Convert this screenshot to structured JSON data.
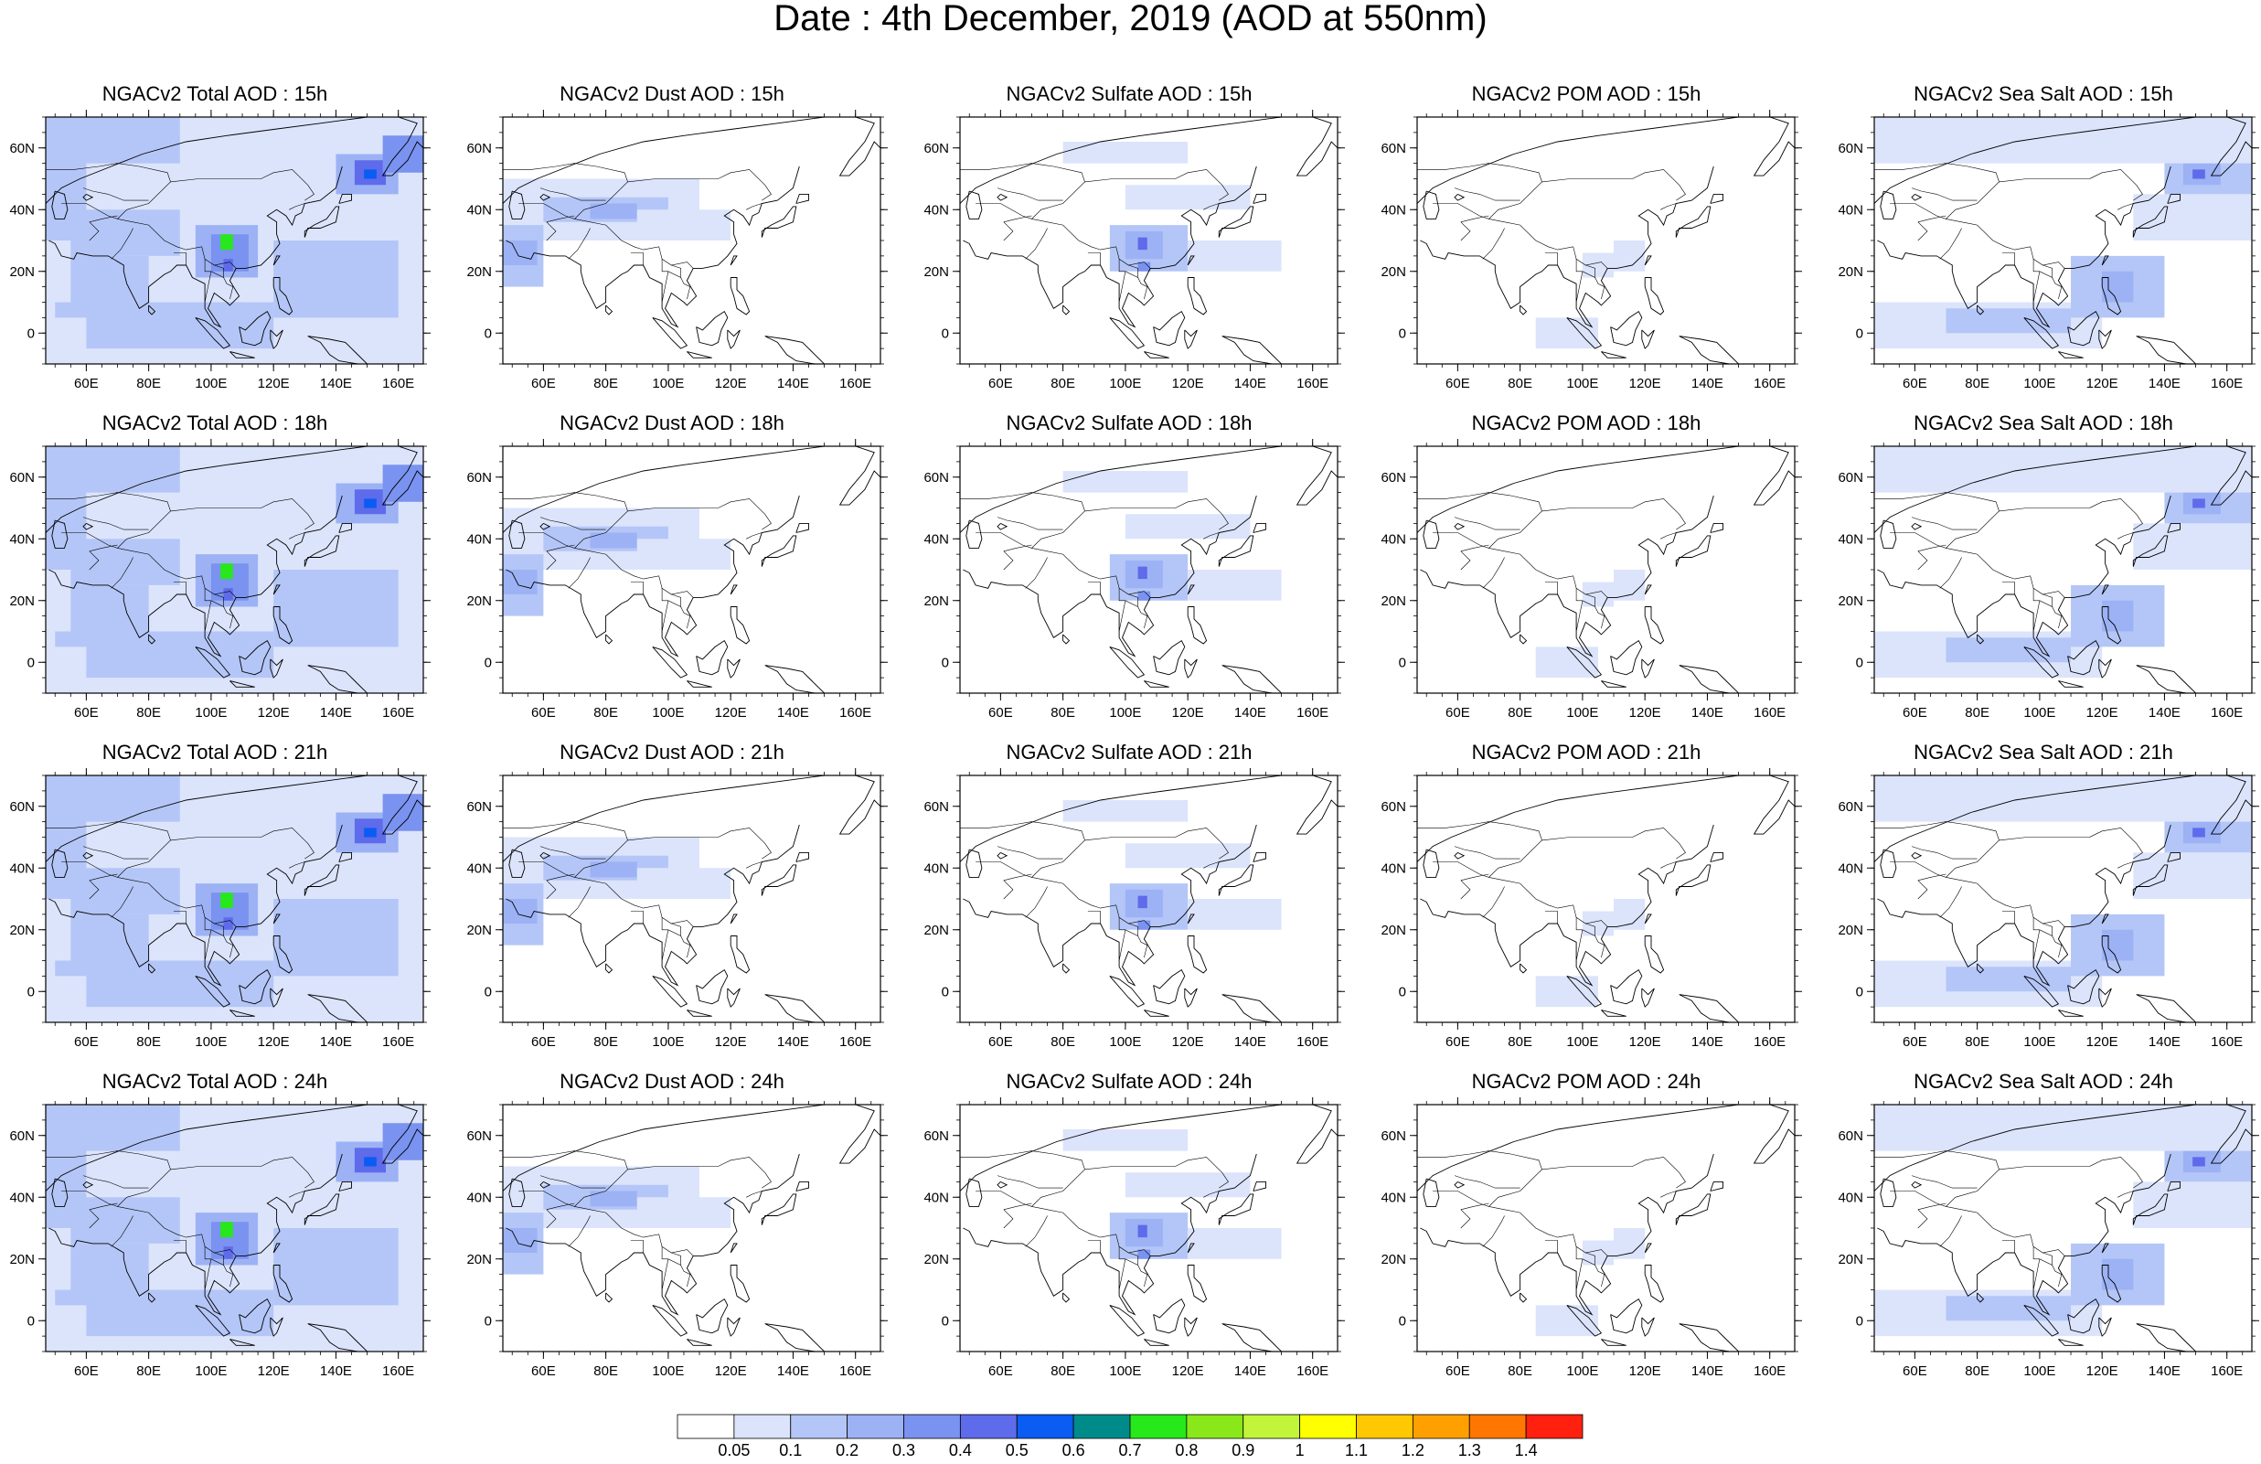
{
  "page": {
    "title": "Date : 4th December, 2019 (AOD at 550nm)"
  },
  "rows": [
    {
      "hour": "15h",
      "titles": [
        "NGACv2 Total AOD : 15h",
        "NGACv2 Dust AOD : 15h",
        "NGACv2 Sulfate AOD : 15h",
        "NGACv2 POM AOD : 15h",
        "NGACv2 Sea Salt AOD : 15h"
      ]
    },
    {
      "hour": "18h",
      "titles": [
        "NGACv2 Total AOD : 18h",
        "NGACv2 Dust AOD : 18h",
        "NGACv2 Sulfate AOD : 18h",
        "NGACv2 POM AOD : 18h",
        "NGACv2 Sea Salt AOD : 18h"
      ]
    },
    {
      "hour": "21h",
      "titles": [
        "NGACv2 Total AOD : 21h",
        "NGACv2 Dust AOD : 21h",
        "NGACv2 Sulfate AOD : 21h",
        "NGACv2 POM AOD : 21h",
        "NGACv2 Sea Salt AOD : 21h"
      ]
    },
    {
      "hour": "24h",
      "titles": [
        "NGACv2 Total AOD : 24h",
        "NGACv2 Dust AOD : 24h",
        "NGACv2 Sulfate AOD : 24h",
        "NGACv2 POM AOD : 24h",
        "NGACv2 Sea Salt  AOD : 24h"
      ]
    }
  ],
  "map": {
    "lon_range": [
      47,
      168
    ],
    "lat_range": [
      -10,
      70
    ],
    "lon_ticks": [
      "60E",
      "80E",
      "100E",
      "120E",
      "140E",
      "160E"
    ],
    "lon_tick_values": [
      60,
      80,
      100,
      120,
      140,
      160
    ],
    "lat_ticks": [
      "60N",
      "40N",
      "20N",
      "0"
    ],
    "lat_tick_values": [
      60,
      40,
      20,
      0
    ]
  },
  "colorbar": {
    "labels": [
      "0.05",
      "0.1",
      "0.2",
      "0.3",
      "0.4",
      "0.5",
      "0.6",
      "0.7",
      "0.8",
      "0.9",
      "1",
      "1.1",
      "1.2",
      "1.3",
      "1.4"
    ],
    "colors": [
      "#ffffff",
      "#dbe4fb",
      "#b4c6f7",
      "#9db2f5",
      "#7a92f0",
      "#5e6bea",
      "#0a5cf2",
      "#008b8b",
      "#27e81a",
      "#8ae81a",
      "#c2f53a",
      "#ffff00",
      "#ffc800",
      "#ffa000",
      "#ff7700",
      "#ff2010"
    ]
  },
  "chart_data": {
    "type": "heatmap",
    "title": "Date : 4th December, 2019 (AOD at 550nm)",
    "species": [
      "Total",
      "Dust",
      "Sulfate",
      "POM",
      "Sea Salt"
    ],
    "hours": [
      "15h",
      "18h",
      "21h",
      "24h"
    ],
    "xlabel": "",
    "ylabel": "",
    "xlim": [
      47,
      168
    ],
    "ylim": [
      -10,
      70
    ],
    "levels": [
      0.05,
      0.1,
      0.2,
      0.3,
      0.4,
      0.5,
      0.6,
      0.7,
      0.8,
      0.9,
      1,
      1.1,
      1.2,
      1.3,
      1.4
    ]
  }
}
